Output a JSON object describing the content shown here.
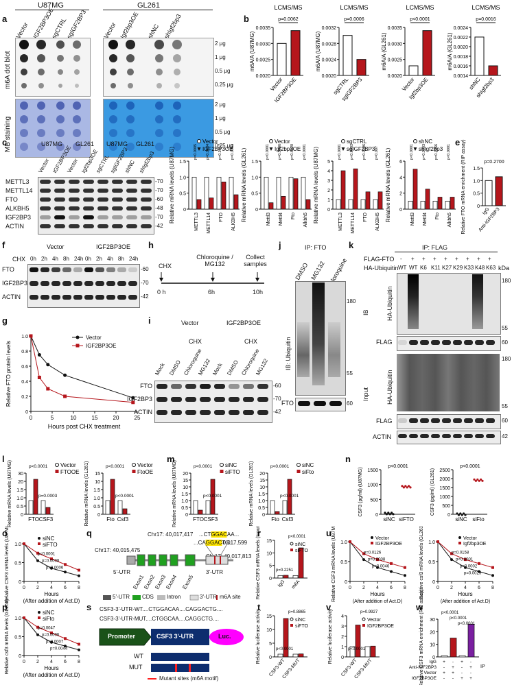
{
  "panels": {
    "a": {
      "label": "a",
      "u87_header": "U87MG",
      "gl_header": "GL261",
      "u87_lanes": [
        "Vector",
        "IGF2BP3OE",
        "sgCTRL",
        "sgIGF2BP3"
      ],
      "gl_lanes": [
        "Vector",
        "Igf2bp3OE",
        "shNC",
        "shIgf2bp3"
      ],
      "amounts": [
        "2 μg",
        "1 μg",
        "0.5 μg",
        "0.25 μg"
      ],
      "row_labels": [
        "m6A dot blot",
        "MB staining"
      ]
    },
    "b": {
      "label": "b",
      "charts": [
        {
          "title": "LCMS/MS",
          "ylabel": "m6A/A (U87MG)",
          "categories": [
            "Vector",
            "IGF2BP3OE"
          ],
          "values": [
            0.003,
            0.0034
          ],
          "p": "p=0.0062",
          "yticks": [
            "0.0035",
            "0.0030",
            "0.0025",
            "0.0020"
          ]
        },
        {
          "title": "LCMS/MS",
          "ylabel": "m6A/A (U87MG)",
          "categories": [
            "sgCTRL",
            "sgIGF2BP3"
          ],
          "values": [
            0.003,
            0.0024
          ],
          "p": "p=0.0006",
          "yticks": [
            "0.0032",
            "0.0028",
            "0.0024",
            "0.0020"
          ]
        },
        {
          "title": "LCMS/MS",
          "ylabel": "m6A/A (GL261)",
          "categories": [
            "Vector",
            "Igf2bp3OE"
          ],
          "values": [
            0.0023,
            0.0034
          ],
          "p": "p<0.0001",
          "yticks": [
            "0.0035",
            "0.0030",
            "0.0025",
            "0.0020"
          ]
        },
        {
          "title": "LCMS/MS",
          "ylabel": "m6A/A (GL261)",
          "categories": [
            "shNC",
            "shIgf2bp3"
          ],
          "values": [
            0.0022,
            0.0016
          ],
          "p": "p=0.0016",
          "yticks": [
            "0.0024",
            "0.0022",
            "0.0020",
            "0.0018",
            "0.0016",
            "0.0014"
          ]
        }
      ]
    },
    "c": {
      "label": "c",
      "headers": [
        "U87MG",
        "GL261",
        "U87MG",
        "GL261"
      ],
      "lanes": [
        "Vector",
        "IGF2BP3OE",
        "Vector",
        "Igf2bp3OE",
        "sgCTRL",
        "sgIGF2BP3",
        "shNC",
        "shIgf2bp3"
      ],
      "proteins": [
        "METTL3",
        "METTL14",
        "FTO",
        "ALKBH5",
        "IGF2BP3",
        "ACTIN"
      ],
      "kda": [
        "70",
        "70",
        "60",
        "48",
        "70",
        "42"
      ]
    },
    "d": {
      "label": "d",
      "charts": [
        {
          "ylabel": "Relative mRNA levels (U87MG)",
          "legend": [
            "Vector",
            "IGF2BP3OE"
          ],
          "categories": [
            "METTL3",
            "METTL14",
            "FTO",
            "ALKBH5"
          ],
          "pvals": [
            "p=0.0005",
            "p=0.0084",
            "p=0.1317",
            "p=0.0063"
          ]
        },
        {
          "ylabel": "Relative mRNA levels (GL261)",
          "legend": [
            "Vector",
            "Igf2bp3OE"
          ],
          "categories": [
            "Mettl3",
            "Mettl4",
            "Fto",
            "Alkbh5"
          ],
          "pvals": [
            "p<0.0001",
            "p=0.0006",
            "p=0.6820",
            "p<0.0001"
          ]
        },
        {
          "ylabel": "Relative mRNA levels (U87MG)",
          "legend": [
            "sgCTRL",
            "sgIGF2BP3"
          ],
          "categories": [
            "METTL3",
            "METTL14",
            "FTO",
            "ALKBH5"
          ],
          "pvals": [
            "p<0.0001",
            "p<0.0001",
            "p=0.0206",
            "p=0.007"
          ]
        },
        {
          "ylabel": "Relative mRNA levels (GL261)",
          "legend": [
            "shNC",
            "shIgf2bp3"
          ],
          "categories": [
            "Mettl3",
            "Mettl4",
            "Fto",
            "Alkbh5"
          ],
          "pvals": [
            "p<0.0001",
            "p=0.0003",
            "p=0.1966",
            "p<0.0001"
          ]
        }
      ]
    },
    "e": {
      "label": "e",
      "ylabel": "Relative FTO mRNA enrichment (RIP assay)",
      "categories": [
        "IgG",
        "Anti-IGF2BP3"
      ],
      "values": [
        1.0,
        1.15
      ],
      "p": "p=0.2700",
      "yticks": [
        "1.5",
        "1.0",
        "0.5",
        "0"
      ]
    },
    "f": {
      "label": "f",
      "groups": [
        "Vector",
        "IGF2BP3OE"
      ],
      "chx": "CHX",
      "times": [
        "0h",
        "2h",
        "4h",
        "8h",
        "24h"
      ],
      "proteins": [
        "FTO",
        "IGF2BP3",
        "ACTIN"
      ],
      "kda": [
        "60",
        "70",
        "42"
      ]
    },
    "g": {
      "label": "g",
      "ylabel": "Relative FTO protein levels",
      "xlabel": "Hours post CHX treatment",
      "legend": [
        "Vector",
        "IGF2BP3OE"
      ],
      "x": [
        0,
        2,
        4,
        8,
        24
      ],
      "vector": [
        1.0,
        0.75,
        0.62,
        0.48,
        0.18
      ],
      "oe": [
        1.0,
        0.45,
        0.3,
        0.2,
        0.12
      ],
      "xticks": [
        "0",
        "5",
        "10",
        "15",
        "20",
        "25"
      ],
      "yticks": [
        "1.0",
        "0.8",
        "0.6",
        "0.4",
        "0.2",
        "0"
      ]
    },
    "h": {
      "label": "h",
      "steps": [
        "CHX",
        "Chloroquine / MG132",
        "Collect samples"
      ],
      "times": [
        "0 h",
        "6h",
        "10h"
      ]
    },
    "i": {
      "label": "i",
      "groups": [
        "Vector",
        "IGF2BP3OE"
      ],
      "chx": [
        "CHX",
        "CHX"
      ],
      "lanes": [
        "Mock",
        "DMSO",
        "Chloroquine",
        "MG132",
        "Mock",
        "DMSO",
        "Chloroquine",
        "MG132"
      ],
      "proteins": [
        "FTO",
        "IGF2BP3",
        "ACTIN"
      ],
      "kda": [
        "60",
        "70",
        "42"
      ]
    },
    "j": {
      "label": "j",
      "title": "IP: FTO",
      "lanes": [
        "DMSO",
        "MG132",
        "Chloroquine"
      ],
      "ib": "IB: Ubiquitin",
      "bottom": "FTO",
      "kda": [
        "180",
        "55",
        "60"
      ]
    },
    "k": {
      "label": "k",
      "title": "IP: FLAG",
      "rows": [
        "FLAG-FTO",
        "HA-Ubiquitin"
      ],
      "flag_signs": [
        "-",
        "+",
        "+",
        "+",
        "+",
        "+",
        "+",
        "+",
        "+"
      ],
      "ubq": [
        "WT",
        "WT",
        "K6",
        "K11",
        "K27",
        "K29",
        "K33",
        "K48",
        "K63"
      ],
      "kda_label": "kDa",
      "sections": [
        "IB",
        "Input"
      ],
      "blots": [
        "HA-Ubiquitin",
        "FLAG",
        "HA-Ubiquitin",
        "FLAG",
        "ACTIN"
      ],
      "kda": [
        "180",
        "55",
        "60",
        "180",
        "55",
        "60",
        "42"
      ]
    },
    "l": {
      "label": "l",
      "charts": [
        {
          "ylabel": "Relative mRNA levels (U87MG)",
          "legend": [
            "Vector",
            "FTOOE"
          ],
          "categories": [
            "FTO",
            "CSF3"
          ],
          "p": [
            "p<0.0001",
            "p=0.0003"
          ]
        },
        {
          "ylabel": "Relative mRNA levels (GL261)",
          "legend": [
            "Vector",
            "FtoOE"
          ],
          "categories": [
            "Fto",
            "Csf3"
          ],
          "p": [
            "p<0.0001",
            "p<0.0001"
          ]
        }
      ]
    },
    "m": {
      "label": "m",
      "charts": [
        {
          "ylabel": "Relative mRNA levels (U87MG)",
          "legend": [
            "siNC",
            "siFTO"
          ],
          "categories": [
            "FTO",
            "CSF3"
          ],
          "p": [
            "p<0.0001",
            "p<0.0001"
          ]
        },
        {
          "ylabel": "Relative mRNA levels (GL261)",
          "legend": [
            "siNC",
            "siFto"
          ],
          "categories": [
            "Fto",
            "Csf3"
          ],
          "p": [
            "p<0.0001",
            "p<0.0001"
          ]
        }
      ]
    },
    "n": {
      "label": "n",
      "charts": [
        {
          "ylabel": "CSF3 (pg/ml) (U87MG)",
          "categories": [
            "siNC",
            "siFTO"
          ],
          "p": "p<0.0001",
          "yticks": [
            "1500",
            "1000",
            "500",
            "0"
          ]
        },
        {
          "ylabel": "CSF3 (pg/ml) (GL261)",
          "categories": [
            "siNC",
            "siFto"
          ],
          "p": "p<0.0001",
          "yticks": [
            "2500",
            "2000",
            "1500",
            "1000",
            "500",
            "0"
          ]
        }
      ]
    },
    "o": {
      "label": "o",
      "ylabel": "Relative CSF3 mRNA levels (U87MG)",
      "xlabel": "Hours",
      "xnote": "(After addition of Act.D)",
      "legend": [
        "siNC",
        "siFTO"
      ],
      "p": [
        "p<0.0001",
        "p=0.0008",
        "p=0.0006"
      ],
      "xticks": [
        "0",
        "2",
        "4",
        "6",
        "8"
      ],
      "yticks": [
        "1.0",
        "0.5",
        "0"
      ]
    },
    "p": {
      "label": "p",
      "ylabel": "Relative csf3 mRNA levels (GL261)",
      "xlabel": "Hours",
      "xnote": "(After addition of Act.D)",
      "legend": [
        "siNC",
        "siFto"
      ],
      "p": [
        "p=0.0047",
        "p=0.0006",
        "p=0.0007",
        "p=0.0044"
      ],
      "xticks": [
        "0",
        "2",
        "4",
        "6",
        "8"
      ],
      "yticks": [
        "1.0",
        "0.5",
        "0"
      ]
    },
    "q": {
      "label": "q",
      "coords": [
        "Chr17: 40,017,417",
        "40,017,599",
        "Chr17: 40,015,475",
        "Chr17: 40,017,813"
      ],
      "seq1": "...CTGGACAA...",
      "seq2": "...CAGGACTG...",
      "utr5": "5'-UTR",
      "utr3": "3'-UTR",
      "exons": [
        "Exon1",
        "Exon2",
        "Exon3",
        "Exon4",
        "Exon5"
      ],
      "legend": [
        "5'-UTR",
        "CDS",
        "Intron",
        "3'-UTR",
        "m6A site"
      ]
    },
    "r": {
      "label": "r",
      "ylabel": "Relative CSF3 mRNA levels (Input %)",
      "legend": [
        "siNC",
        "siFTO"
      ],
      "categories": [
        "IgG",
        "m6A"
      ],
      "p": [
        "p=0.2251",
        "p<0.0001"
      ],
      "yticks": [
        "15",
        "10",
        "5",
        "0"
      ]
    },
    "s": {
      "label": "s",
      "wt": "CSF3-3'-UTR-WT....CTGGACAA....CAGGACTG....",
      "mut": "CSF3-3'-UTR-MUT....CTGGCAA....CAGGCTG....",
      "promoter": "Promoter",
      "utr": "CSF3  3'-UTR",
      "luc": "Luc.",
      "wt_label": "WT",
      "mut_label": "MUT",
      "legend": "Mutant sites (m6A motif)"
    },
    "t": {
      "label": "t",
      "ylabel": "Relative luciferase activity",
      "legend": [
        "siNC",
        "siFTO"
      ],
      "categories": [
        "CSF3-WT",
        "CSF3-MUT"
      ],
      "p": [
        "p<0.0001",
        "p=0.8865"
      ],
      "yticks": [
        "15",
        "10",
        "5",
        "0"
      ]
    },
    "u": {
      "label": "u",
      "charts": [
        {
          "ylabel": "Relative CSF3 mRNA levels (U87MG)",
          "legend": [
            "Vector",
            "IGF2BP3OE"
          ],
          "p": [
            "p=0.0126",
            "p=0.0008",
            "p=0.0046"
          ]
        },
        {
          "ylabel": "Relative csf3 mRNA levels (GL261)",
          "legend": [
            "Vector",
            "Igf2bp3OE"
          ],
          "p": [
            "p=0.0158",
            "p<0.0001",
            "p=0.0002",
            "p=0.0029"
          ]
        }
      ],
      "xlabel": "Hours",
      "xnote": "(After addition of Act.D)",
      "xticks": [
        "0",
        "2",
        "4",
        "6",
        "8"
      ],
      "yticks": [
        "1.0",
        "0.5",
        "0"
      ]
    },
    "v": {
      "label": "v",
      "ylabel": "Relative luciferase activity",
      "legend": [
        "Vector",
        "IGF2BP3OE"
      ],
      "categories": [
        "CSF3-WT",
        "CSF3-MUT"
      ],
      "p": [
        "p<0.0001",
        "p=0.9927"
      ],
      "yticks": [
        "4",
        "3",
        "2",
        "1",
        "0"
      ]
    },
    "w": {
      "label": "w",
      "ylabel": "Relative CSF3 mRNA enrichment (RIP assay)",
      "p": [
        "p<0.0001",
        "p<0.0001",
        "p<0.0001"
      ],
      "rows": [
        "IgG",
        "Anti-IGF2BP3",
        "Vector",
        "IGF2BP3OE"
      ],
      "signs": [
        [
          "+",
          "-",
          "+",
          "-"
        ],
        [
          "-",
          "+",
          "-",
          "+"
        ],
        [
          "+",
          "+",
          "-",
          "-"
        ],
        [
          "-",
          "-",
          "+",
          "+"
        ]
      ],
      "ip": "IP",
      "yticks": [
        "30",
        "20",
        "10",
        "0"
      ]
    }
  },
  "colors": {
    "red": "#b5161c",
    "black": "#111111",
    "blue": "#1a5fd1",
    "yellow": "#ffe600",
    "green": "#20a020",
    "navy": "#0d2d6e",
    "purple": "#7a1fa0",
    "magenta": "#ff00ff"
  }
}
